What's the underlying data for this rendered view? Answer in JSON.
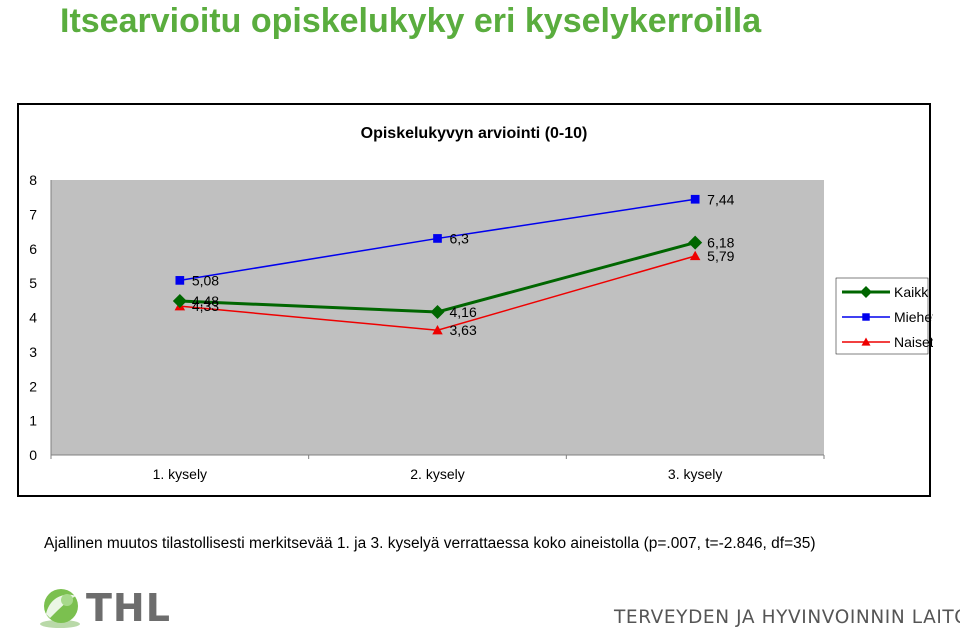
{
  "page": {
    "title": "Itsearvioitu opiskelukyky eri kyselykerroilla",
    "footnote": "Ajallinen muutos tilastollisesti merkitsevää 1. ja 3. kyselyä verrattaessa koko aineistolla (p=.007, t=-2.846, df=35)",
    "logo_text": "THL",
    "institute": "TERVEYDEN JA HYVINVOINNIN LAITOS"
  },
  "chart_data": {
    "type": "line",
    "title": "Opiskelukyvyn arviointi (0-10)",
    "categories": [
      "1. kysely",
      "2. kysely",
      "3. kysely"
    ],
    "ylim": [
      0,
      8
    ],
    "yticks": [
      0,
      1,
      2,
      3,
      4,
      5,
      6,
      7,
      8
    ],
    "grid": false,
    "legend_position": "right",
    "plot_background": "#c0c0c0",
    "series": [
      {
        "name": "Kaikki",
        "values": [
          4.48,
          4.16,
          6.18
        ],
        "labels": [
          "4,48",
          "4,16",
          "6,18"
        ],
        "color": "#006600",
        "marker": "diamond"
      },
      {
        "name": "Miehet",
        "values": [
          5.08,
          6.3,
          7.44
        ],
        "labels": [
          "5,08",
          "6,3",
          "7,44"
        ],
        "color": "#0000ee",
        "marker": "square"
      },
      {
        "name": "Naiset",
        "values": [
          4.33,
          3.63,
          5.79
        ],
        "labels": [
          "4,33",
          "3,63",
          "5,79"
        ],
        "color": "#ee0000",
        "marker": "triangle"
      }
    ]
  }
}
